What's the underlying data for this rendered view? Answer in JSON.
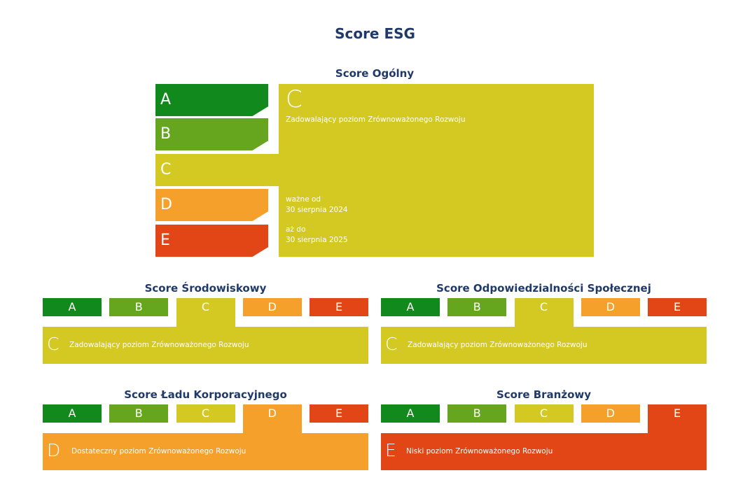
{
  "title": "Score ESG",
  "colors": {
    "A": "#11891c",
    "B": "#66a61e",
    "C": "#d4c823",
    "D": "#f4a02a",
    "E": "#e24617"
  },
  "overall": {
    "title": "Score Ogólny",
    "grades": [
      "A",
      "B",
      "C",
      "D",
      "E"
    ],
    "selected": "C",
    "description": "Zadowalający poziom Zrównoważonego Rozwoju",
    "valid_from_label": "ważne od",
    "valid_from_date": "30 sierpnia 2024",
    "valid_to_label": "aż do",
    "valid_to_date": "30 sierpnia 2025"
  },
  "sub_scores": [
    {
      "title": "Score Środowiskowy",
      "grades": [
        "A",
        "B",
        "C",
        "D",
        "E"
      ],
      "selected": "C",
      "description": "Zadowalający poziom Zrównoważonego Rozwoju"
    },
    {
      "title": "Score Odpowiedzialności Społecznej",
      "grades": [
        "A",
        "B",
        "C",
        "D",
        "E"
      ],
      "selected": "C",
      "description": "Zadowalający poziom Zrównoważonego Rozwoju"
    },
    {
      "title": "Score Ładu Korporacyjnego",
      "grades": [
        "A",
        "B",
        "C",
        "D",
        "E"
      ],
      "selected": "D",
      "description": "Dostateczny poziom Zrównoważonego Rozwoju"
    },
    {
      "title": "Score Branżowy",
      "grades": [
        "A",
        "B",
        "C",
        "D",
        "E"
      ],
      "selected": "E",
      "description": "Niski poziom Zrównoważonego Rozwoju"
    }
  ]
}
